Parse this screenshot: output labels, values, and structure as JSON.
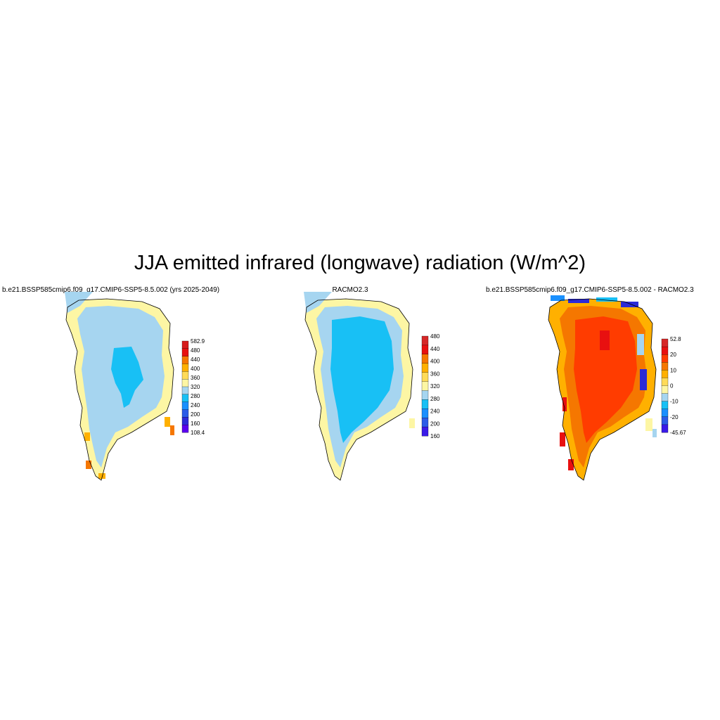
{
  "title": "JJA emitted infrared (longwave) radiation (W/m^2)",
  "panels": [
    {
      "title": "b.e21.BSSP585cmip6.f09_g17.CMIP6-SSP5-8.5.002 (yrs 2025-2049)",
      "colorbar": {
        "labels": [
          "582.9",
          "480",
          "440",
          "400",
          "360",
          "320",
          "280",
          "240",
          "200",
          "160",
          "108.4"
        ],
        "colors": [
          "#d71c1c",
          "#e81010",
          "#f57700",
          "#ffb000",
          "#ffdb58",
          "#fdf6a4",
          "#a6d5f0",
          "#18c0f5",
          "#1a90ff",
          "#2b5ce8",
          "#2d2ad8",
          "#5a00ee"
        ]
      }
    },
    {
      "title": "RACMO2.3",
      "colorbar": {
        "labels": [
          "480",
          "440",
          "400",
          "360",
          "320",
          "280",
          "240",
          "200",
          "160"
        ],
        "colors": [
          "#d62828",
          "#e81010",
          "#f57700",
          "#ffb000",
          "#ffdb58",
          "#fdf6a4",
          "#a6d5f0",
          "#18c0f5",
          "#1a90ff",
          "#2b5ce8",
          "#3a1ae8"
        ]
      }
    },
    {
      "title": "b.e21.BSSP585cmip6.f09_g17.CMIP6-SSP5-8.5.002 - RACMO2.3",
      "colorbar": {
        "labels": [
          "52.8",
          "20",
          "10",
          "0",
          "-10",
          "-20",
          "-45.67"
        ],
        "colors": [
          "#d62828",
          "#e81010",
          "#ff3c00",
          "#f57700",
          "#ffb000",
          "#ffdb58",
          "#fdf6a4",
          "#a6d5f0",
          "#18c0f5",
          "#1a90ff",
          "#2b5ce8",
          "#3a1ae8"
        ]
      }
    }
  ],
  "palette": {
    "light_blue": "#a6d5f0",
    "cyan": "#18c0f5",
    "pale_yellow": "#fdf6a4",
    "yellow": "#ffdb58",
    "orange": "#f57700",
    "red": "#e81010",
    "orange_red": "#ff3c00",
    "blue": "#1a90ff",
    "dark_blue": "#2b2ad8"
  }
}
